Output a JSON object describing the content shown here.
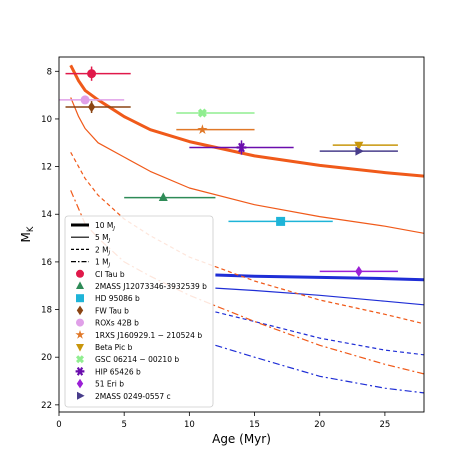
{
  "chart_data": {
    "type": "line",
    "xlabel": "Age (Myr)",
    "ylabel": "M_K",
    "xlim": [
      0,
      28
    ],
    "ylim": [
      22.3,
      7.4
    ],
    "y_inverted": true,
    "xticks": [
      0,
      5,
      10,
      15,
      20,
      25
    ],
    "yticks": [
      8,
      10,
      12,
      14,
      16,
      18,
      20,
      22
    ],
    "grid": false,
    "legend_position": "lower-left",
    "model_tracks": [
      {
        "mass": 10,
        "style": "solid-thick",
        "segments": [
          {
            "color": "#f05a1a",
            "x": [
              0.9,
              1.5,
              2,
              3,
              4,
              5,
              7,
              10,
              15,
              20,
              25,
              28
            ],
            "y": [
              7.75,
              8.4,
              8.8,
              9.2,
              9.55,
              9.9,
              10.45,
              10.95,
              11.55,
              11.95,
              12.25,
              12.4
            ]
          },
          {
            "color": "#1f2ed6",
            "x": [
              12,
              15,
              20,
              25,
              28
            ],
            "y": [
              16.55,
              16.6,
              16.65,
              16.7,
              16.75
            ]
          }
        ]
      },
      {
        "mass": 5,
        "style": "solid",
        "segments": [
          {
            "color": "#f05a1a",
            "x": [
              0.9,
              1.5,
              2,
              3,
              5,
              7,
              10,
              15,
              20,
              25,
              28
            ],
            "y": [
              9.1,
              9.9,
              10.4,
              11.0,
              11.6,
              12.2,
              12.9,
              13.6,
              14.1,
              14.5,
              14.8
            ]
          },
          {
            "color": "#1f2ed6",
            "x": [
              12,
              15,
              20,
              25,
              28
            ],
            "y": [
              17.1,
              17.2,
              17.4,
              17.65,
              17.8
            ]
          }
        ]
      },
      {
        "mass": 2,
        "style": "dashed",
        "segments": [
          {
            "color": "#f05a1a",
            "x": [
              0.9,
              2,
              3,
              5,
              7,
              10,
              15,
              20,
              25,
              28
            ],
            "y": [
              11.4,
              12.5,
              13.2,
              14.2,
              14.9,
              15.8,
              16.8,
              17.6,
              18.2,
              18.6
            ]
          },
          {
            "color": "#1f2ed6",
            "x": [
              12,
              15,
              20,
              25,
              28
            ],
            "y": [
              18.1,
              18.5,
              19.2,
              19.7,
              19.9
            ]
          }
        ]
      },
      {
        "mass": 1,
        "style": "dashdot",
        "segments": [
          {
            "color": "#f05a1a",
            "x": [
              0.9,
              2,
              3,
              5,
              7,
              10,
              15,
              20,
              25,
              28
            ],
            "y": [
              13.0,
              14.4,
              15.0,
              16.0,
              16.6,
              17.4,
              18.5,
              19.5,
              20.3,
              20.7
            ]
          },
          {
            "color": "#1f2ed6",
            "x": [
              12,
              15,
              20,
              25,
              28
            ],
            "y": [
              19.5,
              20.0,
              20.8,
              21.3,
              21.5
            ]
          }
        ]
      }
    ],
    "objects": [
      {
        "name": "CI Tau b",
        "marker": "circle",
        "color": "#e0194a",
        "x": 2.5,
        "y": 8.1,
        "xerr": [
          2.0,
          3.0
        ],
        "yerr": [
          0.3,
          0.3
        ]
      },
      {
        "name": "2MASS J12073346-3932539 b",
        "marker": "triangle-up",
        "color": "#2e8b57",
        "x": 8.0,
        "y": 13.3,
        "xerr": [
          3.0,
          4.0
        ]
      },
      {
        "name": "HD 95086 b",
        "marker": "square",
        "color": "#1eb4d8",
        "x": 17.0,
        "y": 14.3,
        "xerr": [
          4.0,
          4.0
        ]
      },
      {
        "name": "FW Tau b",
        "marker": "diamond",
        "color": "#8b4513",
        "x": 2.5,
        "y": 9.5,
        "xerr": [
          2.0,
          3.0
        ],
        "yerr": [
          0.25,
          0.25
        ]
      },
      {
        "name": "ROXs 42B b",
        "marker": "circle",
        "color": "#e0a0e8",
        "x": 2.0,
        "y": 9.2,
        "xerr": [
          2.0,
          3.0
        ]
      },
      {
        "name": "1RXS J160929.1 − 210524 b",
        "marker": "star",
        "color": "#e07828",
        "x": 11.0,
        "y": 10.45,
        "xerr": [
          2.0,
          4.0
        ]
      },
      {
        "name": "Beta Pic b",
        "marker": "triangle-down",
        "color": "#c8960c",
        "x": 23.0,
        "y": 11.1,
        "xerr": [
          2.0,
          3.0
        ]
      },
      {
        "name": "GSC 06214 − 00210 b",
        "marker": "x",
        "color": "#90ee90",
        "x": 11.0,
        "y": 9.75,
        "xerr": [
          2.0,
          4.0
        ]
      },
      {
        "name": "HIP 65426 b",
        "marker": "asterisk",
        "color": "#6a0dad",
        "x": 14.0,
        "y": 11.2,
        "xerr": [
          4.0,
          4.0
        ],
        "yerr": [
          0.3,
          0.3
        ]
      },
      {
        "name": "51 Eri b",
        "marker": "diamond",
        "color": "#9b1fd6",
        "x": 23.0,
        "y": 16.4,
        "xerr": [
          3.0,
          3.0
        ]
      },
      {
        "name": "2MASS 0249-0557 c",
        "marker": "triangle-right",
        "color": "#483d8b",
        "x": 23.0,
        "y": 11.35,
        "xerr": [
          3.0,
          3.0
        ]
      }
    ],
    "legend": {
      "lines": [
        {
          "label": "10 M_J",
          "style": "solid-thick"
        },
        {
          "label": "5 M_J",
          "style": "solid"
        },
        {
          "label": "2 M_J",
          "style": "dashed"
        },
        {
          "label": "1 M_J",
          "style": "dashdot"
        }
      ]
    }
  }
}
